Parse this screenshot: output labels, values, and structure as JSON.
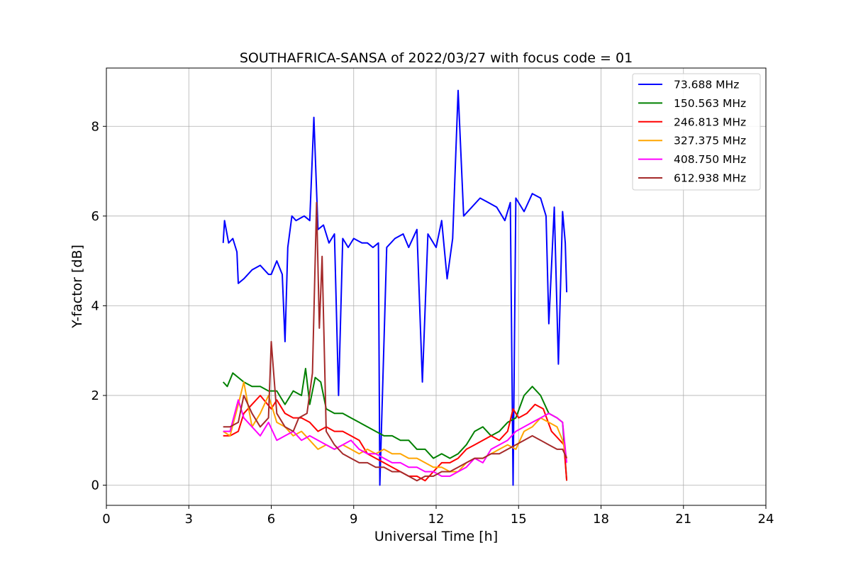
{
  "chart_data": {
    "type": "line",
    "title": "SOUTHAFRICA-SANSA of 2022/03/27 with focus code = 01",
    "xlabel": "Universal Time [h]",
    "ylabel": "Y-factor [dB]",
    "xlim": [
      0,
      24
    ],
    "ylim": [
      -0.45,
      9.3
    ],
    "xticks": [
      0,
      3,
      6,
      9,
      12,
      15,
      18,
      21,
      24
    ],
    "yticks": [
      0,
      2,
      4,
      6,
      8
    ],
    "grid": true,
    "legend_position": "top-right",
    "series": [
      {
        "name": "73.688 MHz",
        "color": "#0000ff",
        "x": [
          4.25,
          4.3,
          4.45,
          4.6,
          4.75,
          4.8,
          5.0,
          5.3,
          5.6,
          5.9,
          6.0,
          6.2,
          6.4,
          6.5,
          6.6,
          6.75,
          6.9,
          7.2,
          7.4,
          7.55,
          7.7,
          7.9,
          8.1,
          8.3,
          8.45,
          8.6,
          8.8,
          9.0,
          9.3,
          9.5,
          9.7,
          9.9,
          9.95,
          10.2,
          10.5,
          10.8,
          11.0,
          11.3,
          11.5,
          11.7,
          12.0,
          12.2,
          12.4,
          12.6,
          12.8,
          13.0,
          13.3,
          13.6,
          13.9,
          14.2,
          14.5,
          14.7,
          14.8,
          14.9,
          15.2,
          15.5,
          15.8,
          16.0,
          16.1,
          16.3,
          16.45,
          16.6,
          16.7,
          16.75
        ],
        "values": [
          5.4,
          5.9,
          5.4,
          5.5,
          5.2,
          4.5,
          4.6,
          4.8,
          4.9,
          4.7,
          4.7,
          5.0,
          4.7,
          3.2,
          5.3,
          6.0,
          5.9,
          6.0,
          5.9,
          8.2,
          5.7,
          5.8,
          5.4,
          5.6,
          2.0,
          5.5,
          5.3,
          5.5,
          5.4,
          5.4,
          5.3,
          5.4,
          0.0,
          5.3,
          5.5,
          5.6,
          5.3,
          5.7,
          2.3,
          5.6,
          5.3,
          5.9,
          4.6,
          5.5,
          8.8,
          6.0,
          6.2,
          6.4,
          6.3,
          6.2,
          5.9,
          6.3,
          0.0,
          6.4,
          6.1,
          6.5,
          6.4,
          6.0,
          3.6,
          6.2,
          2.7,
          6.1,
          5.4,
          4.3
        ]
      },
      {
        "name": "150.563 MHz",
        "color": "#008000",
        "x": [
          4.25,
          4.4,
          4.6,
          4.8,
          5.0,
          5.3,
          5.6,
          5.9,
          6.2,
          6.5,
          6.8,
          7.1,
          7.25,
          7.4,
          7.6,
          7.8,
          8.0,
          8.3,
          8.6,
          8.9,
          9.2,
          9.5,
          9.8,
          10.1,
          10.4,
          10.7,
          11.0,
          11.3,
          11.6,
          11.9,
          12.2,
          12.5,
          12.8,
          13.1,
          13.4,
          13.7,
          14.0,
          14.3,
          14.6,
          14.9,
          15.2,
          15.5,
          15.8,
          16.1,
          16.4,
          16.6,
          16.75
        ],
        "values": [
          2.3,
          2.2,
          2.5,
          2.4,
          2.3,
          2.2,
          2.2,
          2.1,
          2.1,
          1.8,
          2.1,
          2.0,
          2.6,
          1.8,
          2.4,
          2.3,
          1.7,
          1.6,
          1.6,
          1.5,
          1.4,
          1.3,
          1.2,
          1.1,
          1.1,
          1.0,
          1.0,
          0.8,
          0.8,
          0.6,
          0.7,
          0.6,
          0.7,
          0.9,
          1.2,
          1.3,
          1.1,
          1.2,
          1.4,
          1.5,
          2.0,
          2.2,
          2.0,
          1.6,
          1.5,
          1.4,
          0.1
        ]
      },
      {
        "name": "246.813 MHz",
        "color": "#ff0000",
        "x": [
          4.25,
          4.5,
          4.8,
          5.0,
          5.3,
          5.6,
          6.0,
          6.2,
          6.5,
          6.8,
          7.1,
          7.4,
          7.7,
          8.0,
          8.3,
          8.6,
          8.9,
          9.2,
          9.5,
          9.8,
          10.1,
          10.4,
          10.7,
          11.0,
          11.3,
          11.6,
          11.9,
          12.2,
          12.5,
          12.8,
          13.1,
          13.4,
          13.7,
          14.0,
          14.3,
          14.6,
          14.8,
          15.0,
          15.3,
          15.6,
          15.9,
          16.2,
          16.5,
          16.65,
          16.75
        ],
        "values": [
          1.1,
          1.1,
          1.2,
          1.6,
          1.8,
          2.0,
          1.7,
          1.9,
          1.6,
          1.5,
          1.5,
          1.4,
          1.2,
          1.3,
          1.2,
          1.2,
          1.1,
          1.0,
          0.7,
          0.6,
          0.5,
          0.4,
          0.3,
          0.2,
          0.2,
          0.1,
          0.3,
          0.5,
          0.5,
          0.6,
          0.8,
          0.9,
          1.0,
          1.1,
          1.0,
          1.2,
          1.7,
          1.5,
          1.6,
          1.8,
          1.7,
          1.2,
          1.0,
          0.9,
          0.1
        ]
      },
      {
        "name": "327.375 MHz",
        "color": "#ffa500",
        "x": [
          4.25,
          4.5,
          4.8,
          5.0,
          5.3,
          5.6,
          5.9,
          6.2,
          6.5,
          6.8,
          7.1,
          7.4,
          7.7,
          8.0,
          8.3,
          8.6,
          8.9,
          9.2,
          9.5,
          9.8,
          10.1,
          10.4,
          10.7,
          11.0,
          11.3,
          11.6,
          11.9,
          12.2,
          12.5,
          12.8,
          13.1,
          13.4,
          13.7,
          14.0,
          14.3,
          14.6,
          14.9,
          15.2,
          15.5,
          15.8,
          16.1,
          16.4,
          16.6,
          16.75
        ],
        "values": [
          1.2,
          1.1,
          1.8,
          2.3,
          1.3,
          1.6,
          2.0,
          1.4,
          1.3,
          1.1,
          1.2,
          1.0,
          0.8,
          0.9,
          0.8,
          0.9,
          0.8,
          0.7,
          0.8,
          0.7,
          0.8,
          0.7,
          0.7,
          0.6,
          0.6,
          0.5,
          0.4,
          0.4,
          0.3,
          0.3,
          0.5,
          0.6,
          0.6,
          0.7,
          0.8,
          0.9,
          0.8,
          1.2,
          1.3,
          1.5,
          1.4,
          1.3,
          1.0,
          0.6
        ]
      },
      {
        "name": "408.750 MHz",
        "color": "#ff00ff",
        "x": [
          4.25,
          4.5,
          4.8,
          5.0,
          5.3,
          5.6,
          5.9,
          6.2,
          6.5,
          6.8,
          7.1,
          7.4,
          7.7,
          8.0,
          8.3,
          8.6,
          8.9,
          9.2,
          9.5,
          9.8,
          10.1,
          10.4,
          10.7,
          11.0,
          11.3,
          11.6,
          11.9,
          12.2,
          12.5,
          12.8,
          13.1,
          13.4,
          13.7,
          14.0,
          14.3,
          14.6,
          14.9,
          15.2,
          15.5,
          15.8,
          16.1,
          16.4,
          16.6,
          16.75
        ],
        "values": [
          1.2,
          1.2,
          1.9,
          1.5,
          1.3,
          1.1,
          1.4,
          1.0,
          1.1,
          1.2,
          1.0,
          1.1,
          1.0,
          0.9,
          0.8,
          0.9,
          1.0,
          0.8,
          0.7,
          0.7,
          0.6,
          0.5,
          0.5,
          0.4,
          0.4,
          0.3,
          0.3,
          0.2,
          0.2,
          0.3,
          0.4,
          0.6,
          0.5,
          0.8,
          0.9,
          1.0,
          1.2,
          1.3,
          1.4,
          1.5,
          1.6,
          1.5,
          1.4,
          0.5
        ]
      },
      {
        "name": "612.938 MHz",
        "color": "#a52a2a",
        "x": [
          4.25,
          4.5,
          4.8,
          5.0,
          5.3,
          5.6,
          5.9,
          6.0,
          6.2,
          6.5,
          6.8,
          7.0,
          7.3,
          7.5,
          7.65,
          7.75,
          7.85,
          8.0,
          8.3,
          8.6,
          8.9,
          9.2,
          9.5,
          9.8,
          10.1,
          10.4,
          10.7,
          11.0,
          11.3,
          11.6,
          11.9,
          12.2,
          12.5,
          12.8,
          13.1,
          13.4,
          13.7,
          14.0,
          14.3,
          14.6,
          14.9,
          15.2,
          15.5,
          15.8,
          16.1,
          16.4,
          16.6,
          16.75
        ],
        "values": [
          1.3,
          1.3,
          1.4,
          2.0,
          1.6,
          1.3,
          1.5,
          3.2,
          1.6,
          1.3,
          1.2,
          1.5,
          1.6,
          2.5,
          6.3,
          3.5,
          5.1,
          1.2,
          0.9,
          0.7,
          0.6,
          0.5,
          0.5,
          0.4,
          0.4,
          0.3,
          0.3,
          0.2,
          0.1,
          0.2,
          0.2,
          0.3,
          0.3,
          0.4,
          0.5,
          0.6,
          0.6,
          0.7,
          0.7,
          0.8,
          0.9,
          1.0,
          1.1,
          1.0,
          0.9,
          0.8,
          0.8,
          0.6
        ]
      }
    ]
  }
}
